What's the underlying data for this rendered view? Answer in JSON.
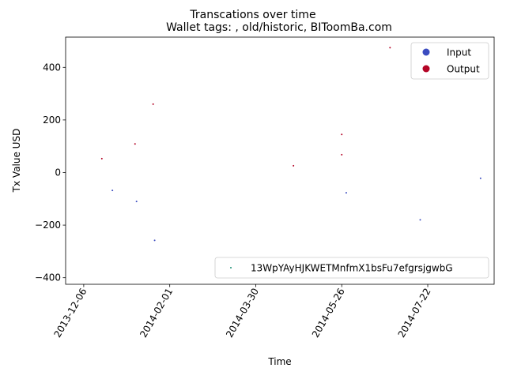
{
  "chart_data": {
    "type": "scatter",
    "title": "Transcations over time",
    "subtitle": "Wallet tags: , old/historic, BIToomBa.com",
    "xlabel": "Time",
    "ylabel": "Tx Value USD",
    "x_type": "date",
    "xlim": [
      "2013-11-24",
      "2014-09-04"
    ],
    "ylim": [
      -425,
      515
    ],
    "xticks": [
      "2013-12-06",
      "2014-02-01",
      "2014-03-30",
      "2014-05-26",
      "2014-07-22"
    ],
    "yticks": [
      -400,
      -200,
      0,
      200,
      400
    ],
    "grid": false,
    "legend": {
      "position": "upper right",
      "entries": [
        {
          "label": "Input",
          "color": "#3b4cc0"
        },
        {
          "label": "Output",
          "color": "#b40426"
        }
      ]
    },
    "legend2": {
      "position": "lower right",
      "entries": [
        {
          "label": "13WpYAyHJKWETMnfmX1bsFu7efgrsjgwbG",
          "color": "#1b8f74"
        }
      ]
    },
    "series": [
      {
        "name": "Input",
        "color": "#3b4cc0",
        "points": [
          {
            "x": "2013-12-25",
            "y": -68
          },
          {
            "x": "2014-01-10",
            "y": -110
          },
          {
            "x": "2014-01-22",
            "y": -258
          },
          {
            "x": "2014-05-29",
            "y": -77
          },
          {
            "x": "2014-07-17",
            "y": -180
          },
          {
            "x": "2014-08-26",
            "y": -22
          }
        ]
      },
      {
        "name": "Output",
        "color": "#b40426",
        "points": [
          {
            "x": "2013-12-18",
            "y": 53
          },
          {
            "x": "2014-01-09",
            "y": 109
          },
          {
            "x": "2014-01-21",
            "y": 260
          },
          {
            "x": "2014-04-24",
            "y": 26
          },
          {
            "x": "2014-05-26",
            "y": 145
          },
          {
            "x": "2014-05-26",
            "y": 68
          },
          {
            "x": "2014-06-27",
            "y": 475
          }
        ]
      }
    ]
  }
}
